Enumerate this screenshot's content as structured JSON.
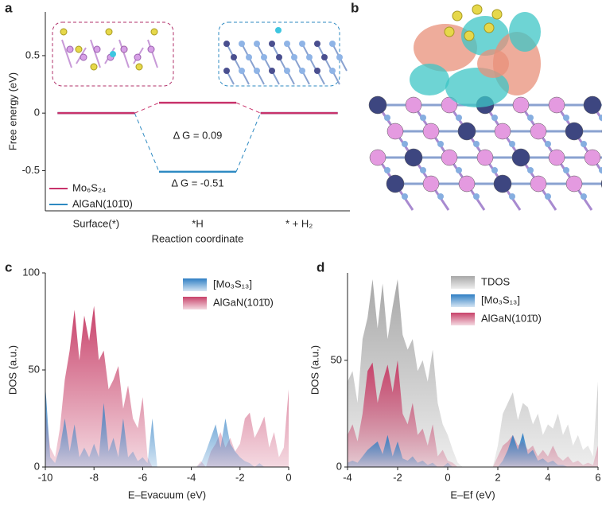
{
  "image_panel": {
    "panel": "b"
  },
  "chart_data": [
    {
      "type": "level",
      "panel": "a",
      "categories": [
        "Surface(*)",
        "*H",
        "* + H₂"
      ],
      "series": [
        {
          "name": "Mo₆S₂₄",
          "color": "#c8336b",
          "values": [
            0,
            0.09,
            0
          ]
        },
        {
          "name": "AlGaN(101̄0)",
          "color": "#2e8ac2",
          "values": [
            0,
            -0.51,
            0
          ]
        }
      ],
      "annotations": [
        "Δ G = 0.09",
        "Δ G = -0.51"
      ],
      "ylim": [
        -0.85,
        0.88
      ],
      "yticks": [
        -0.5,
        0,
        0.5
      ],
      "xlabel": "Reaction coordinate",
      "ylabel": "Free energy (eV)",
      "legend": "lower left"
    },
    {
      "type": "area",
      "panel": "c",
      "x": [
        -10,
        -9.8,
        -9.6,
        -9.4,
        -9.2,
        -9,
        -8.8,
        -8.6,
        -8.4,
        -8.2,
        -8,
        -7.8,
        -7.6,
        -7.4,
        -7.2,
        -7,
        -6.8,
        -6.6,
        -6.4,
        -6.2,
        -6,
        -5.8,
        -5.6,
        -5.4,
        -5.2,
        -5,
        -4.8,
        -4.6,
        -4.4,
        -4.2,
        -4,
        -3.8,
        -3.6,
        -3.4,
        -3.2,
        -3,
        -2.8,
        -2.6,
        -2.4,
        -2.2,
        -2,
        -1.8,
        -1.6,
        -1.4,
        -1.2,
        -1,
        -0.8,
        -0.6,
        -0.4,
        -0.2,
        0
      ],
      "series": [
        {
          "name": "[Mo₃S₁₃]",
          "color": "#2f7fc4",
          "values": [
            42,
            5,
            2,
            10,
            25,
            8,
            22,
            5,
            10,
            5,
            12,
            5,
            33,
            8,
            15,
            5,
            25,
            5,
            8,
            3,
            5,
            2,
            25,
            0,
            0,
            0,
            0,
            0,
            0,
            0,
            0,
            0,
            2,
            8,
            15,
            22,
            10,
            25,
            12,
            8,
            5,
            3,
            2,
            0,
            2,
            0,
            0,
            0,
            0,
            0,
            0
          ]
        },
        {
          "name": "AlGaN(101̄0)",
          "color": "#c8426a",
          "values": [
            30,
            10,
            5,
            20,
            45,
            60,
            81,
            55,
            78,
            65,
            83,
            55,
            60,
            40,
            45,
            52,
            30,
            42,
            25,
            20,
            36,
            5,
            0,
            0,
            0,
            0,
            0,
            0,
            0,
            0,
            0,
            0,
            3,
            0,
            8,
            12,
            18,
            10,
            15,
            8,
            12,
            25,
            28,
            15,
            20,
            26,
            10,
            18,
            5,
            10,
            40
          ]
        }
      ],
      "xlim": [
        -10,
        0
      ],
      "xticks": [
        -10,
        -8,
        -6,
        -4,
        -2,
        0
      ],
      "ylim": [
        0,
        100
      ],
      "yticks": [
        0,
        50,
        100
      ],
      "xlabel": "E–Evacuum (eV)",
      "ylabel": "DOS (a.u.)",
      "legend": "upper right"
    },
    {
      "type": "area",
      "panel": "d",
      "x": [
        -4,
        -3.8,
        -3.6,
        -3.4,
        -3.2,
        -3,
        -2.8,
        -2.6,
        -2.4,
        -2.2,
        -2,
        -1.8,
        -1.6,
        -1.4,
        -1.2,
        -1,
        -0.8,
        -0.6,
        -0.4,
        -0.2,
        0,
        0.2,
        0.4,
        0.6,
        0.8,
        1,
        1.2,
        1.4,
        1.6,
        1.8,
        2,
        2.2,
        2.4,
        2.6,
        2.8,
        3,
        3.2,
        3.4,
        3.6,
        3.8,
        4,
        4.2,
        4.4,
        4.6,
        4.8,
        5,
        5.2,
        5.4,
        5.6,
        5.8,
        6
      ],
      "series": [
        {
          "name": "TDOS",
          "color": "#a8a8a8",
          "values": [
            40,
            45,
            30,
            60,
            70,
            88,
            65,
            86,
            60,
            75,
            88,
            62,
            55,
            60,
            45,
            50,
            40,
            55,
            30,
            20,
            15,
            8,
            2,
            0,
            0,
            0,
            0,
            0,
            0,
            0,
            10,
            25,
            30,
            35,
            22,
            30,
            28,
            20,
            25,
            15,
            20,
            18,
            25,
            15,
            20,
            10,
            15,
            8,
            10,
            5,
            40
          ]
        },
        {
          "name": "[Mo₃S₁₃]",
          "color": "#2f7fc4",
          "values": [
            2,
            3,
            2,
            5,
            8,
            10,
            12,
            6,
            15,
            5,
            12,
            4,
            3,
            5,
            2,
            3,
            1,
            2,
            0,
            0,
            2,
            0,
            0,
            0,
            0,
            0,
            0,
            0,
            0,
            0,
            0,
            3,
            8,
            15,
            8,
            16,
            6,
            8,
            3,
            4,
            2,
            3,
            1,
            1,
            0,
            0,
            0,
            0,
            0,
            0,
            0
          ]
        },
        {
          "name": "AlGaN(101̄0)",
          "color": "#c8426a",
          "values": [
            15,
            20,
            12,
            25,
            45,
            49,
            30,
            40,
            48,
            35,
            50,
            25,
            20,
            30,
            15,
            18,
            10,
            20,
            5,
            8,
            3,
            2,
            0,
            0,
            0,
            0,
            0,
            0,
            0,
            0,
            5,
            10,
            12,
            15,
            10,
            12,
            8,
            10,
            5,
            8,
            5,
            10,
            5,
            3,
            5,
            2,
            3,
            1,
            2,
            1,
            10
          ]
        }
      ],
      "xlim": [
        -4,
        6
      ],
      "xticks": [
        -4,
        -2,
        0,
        2,
        4,
        6
      ],
      "ylim": [
        0,
        91
      ],
      "yticks": [
        0,
        50
      ],
      "xlabel": "E–Ef (eV)",
      "ylabel": "DOS (a.u.)",
      "legend": "upper right"
    }
  ]
}
